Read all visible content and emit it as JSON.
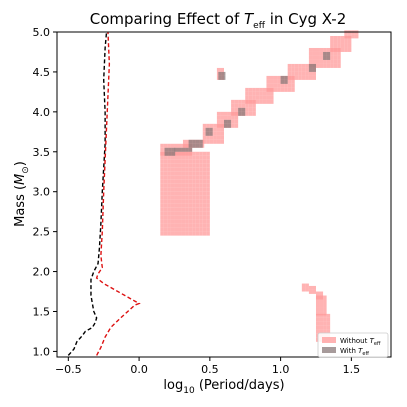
{
  "chart_data": {
    "type": "heatmap",
    "title_prefix": "Comparing Effect of ",
    "title_symbol": "T",
    "title_symbol_sub": "eff",
    "title_suffix": " in Cyg X-2",
    "xlabel_prefix": "log",
    "xlabel_sub": "10",
    "xlabel_suffix": " (Period/days)",
    "ylabel_prefix": "Mass (",
    "ylabel_symbol": "M",
    "ylabel_sub": "⊙",
    "ylabel_suffix": ")",
    "xlim": [
      -0.58,
      1.78
    ],
    "ylim": [
      0.93,
      5.0
    ],
    "xticks": [
      -0.5,
      0.0,
      0.5,
      1.0,
      1.5
    ],
    "xtick_labels": [
      "−0.5",
      "0.0",
      "0.5",
      "1.0",
      "1.5"
    ],
    "yticks": [
      1.0,
      1.5,
      2.0,
      2.5,
      3.0,
      3.5,
      4.0,
      4.5,
      5.0
    ],
    "ytick_labels": [
      "1.0",
      "1.5",
      "2.0",
      "2.5",
      "3.0",
      "3.5",
      "4.0",
      "4.5",
      "5.0"
    ],
    "grid": false,
    "legend_placement": "lower-right",
    "series": [
      {
        "name_prefix": "Without ",
        "name_symbol": "T",
        "name_sub": "eff",
        "color": "#ff9999",
        "opacity": 0.75,
        "regions": [
          {
            "x": [
              0.15,
              0.48
            ],
            "y": [
              2.45,
              3.5
            ]
          },
          {
            "x": [
              0.15,
              0.37
            ],
            "y": [
              3.45,
              3.56
            ]
          },
          {
            "x": [
              0.31,
              0.46
            ],
            "y": [
              3.55,
              3.65
            ]
          },
          {
            "x": [
              0.45,
              0.6
            ],
            "y": [
              3.6,
              3.85
            ]
          },
          {
            "x": [
              0.55,
              0.7
            ],
            "y": [
              3.8,
              4.0
            ]
          },
          {
            "x": [
              0.65,
              0.82
            ],
            "y": [
              3.95,
              4.15
            ]
          },
          {
            "x": [
              0.75,
              0.95
            ],
            "y": [
              4.1,
              4.3
            ]
          },
          {
            "x": [
              0.9,
              1.1
            ],
            "y": [
              4.25,
              4.45
            ]
          },
          {
            "x": [
              1.05,
              1.25
            ],
            "y": [
              4.4,
              4.6
            ]
          },
          {
            "x": [
              1.2,
              1.42
            ],
            "y": [
              4.55,
              4.8
            ]
          },
          {
            "x": [
              1.35,
              1.5
            ],
            "y": [
              4.75,
              4.92
            ]
          },
          {
            "x": [
              1.45,
              1.55
            ],
            "y": [
              4.92,
              4.98
            ]
          },
          {
            "x": [
              0.55,
              0.6
            ],
            "y": [
              4.4,
              4.55
            ]
          },
          {
            "x": [
              1.15,
              1.2
            ],
            "y": [
              1.75,
              1.82
            ]
          },
          {
            "x": [
              1.2,
              1.25
            ],
            "y": [
              1.72,
              1.8
            ]
          },
          {
            "x": [
              1.25,
              1.28
            ],
            "y": [
              1.65,
              1.75
            ]
          },
          {
            "x": [
              1.25,
              1.32
            ],
            "y": [
              1.45,
              1.68
            ]
          },
          {
            "x": [
              1.25,
              1.35
            ],
            "y": [
              1.12,
              1.45
            ]
          }
        ]
      },
      {
        "name_prefix": "With ",
        "name_symbol": "T",
        "name_sub": "eff",
        "color": "#8a7a7a",
        "opacity": 0.75,
        "regions": [
          {
            "x": [
              0.18,
              0.25
            ],
            "y": [
              3.45,
              3.52
            ]
          },
          {
            "x": [
              0.25,
              0.37
            ],
            "y": [
              3.5,
              3.55
            ]
          },
          {
            "x": [
              0.35,
              0.45
            ],
            "y": [
              3.55,
              3.62
            ]
          },
          {
            "x": [
              0.47,
              0.52
            ],
            "y": [
              3.7,
              3.78
            ]
          },
          {
            "x": [
              0.6,
              0.65
            ],
            "y": [
              3.8,
              3.86
            ]
          },
          {
            "x": [
              0.7,
              0.75
            ],
            "y": [
              3.95,
              4.02
            ]
          },
          {
            "x": [
              1.0,
              1.05
            ],
            "y": [
              4.35,
              4.42
            ]
          },
          {
            "x": [
              1.2,
              1.25
            ],
            "y": [
              4.5,
              4.57
            ]
          },
          {
            "x": [
              1.3,
              1.35
            ],
            "y": [
              4.65,
              4.72
            ]
          },
          {
            "x": [
              0.56,
              0.6
            ],
            "y": [
              4.4,
              4.47
            ]
          }
        ]
      }
    ],
    "curves": [
      {
        "color": "#000000",
        "dash": "dashed",
        "points": [
          [
            -0.5,
            0.95
          ],
          [
            -0.46,
            1.03
          ],
          [
            -0.44,
            1.12
          ],
          [
            -0.4,
            1.2
          ],
          [
            -0.38,
            1.25
          ],
          [
            -0.33,
            1.3
          ],
          [
            -0.31,
            1.36
          ],
          [
            -0.3,
            1.42
          ],
          [
            -0.32,
            1.5
          ],
          [
            -0.33,
            1.6
          ],
          [
            -0.34,
            1.7
          ],
          [
            -0.34,
            1.8
          ],
          [
            -0.34,
            1.9
          ],
          [
            -0.32,
            2.0
          ],
          [
            -0.29,
            2.1
          ],
          [
            -0.28,
            2.3
          ],
          [
            -0.27,
            2.6
          ],
          [
            -0.26,
            3.0
          ],
          [
            -0.25,
            3.3
          ],
          [
            -0.24,
            3.6
          ],
          [
            -0.24,
            4.0
          ],
          [
            -0.25,
            4.4
          ],
          [
            -0.24,
            4.8
          ],
          [
            -0.23,
            5.0
          ]
        ]
      },
      {
        "color": "#dd1111",
        "dash": "dashed",
        "points": [
          [
            -0.3,
            0.95
          ],
          [
            -0.27,
            1.05
          ],
          [
            -0.24,
            1.18
          ],
          [
            -0.2,
            1.3
          ],
          [
            -0.13,
            1.42
          ],
          [
            -0.08,
            1.5
          ],
          [
            -0.03,
            1.58
          ],
          [
            0.0,
            1.6
          ],
          [
            -0.03,
            1.63
          ],
          [
            -0.1,
            1.7
          ],
          [
            -0.18,
            1.78
          ],
          [
            -0.25,
            1.85
          ],
          [
            -0.3,
            1.92
          ],
          [
            -0.29,
            1.97
          ],
          [
            -0.26,
            2.05
          ],
          [
            -0.27,
            2.2
          ],
          [
            -0.26,
            2.5
          ],
          [
            -0.25,
            3.0
          ],
          [
            -0.24,
            3.4
          ],
          [
            -0.23,
            3.8
          ],
          [
            -0.22,
            4.2
          ],
          [
            -0.21,
            4.6
          ],
          [
            -0.22,
            5.0
          ]
        ]
      }
    ]
  }
}
